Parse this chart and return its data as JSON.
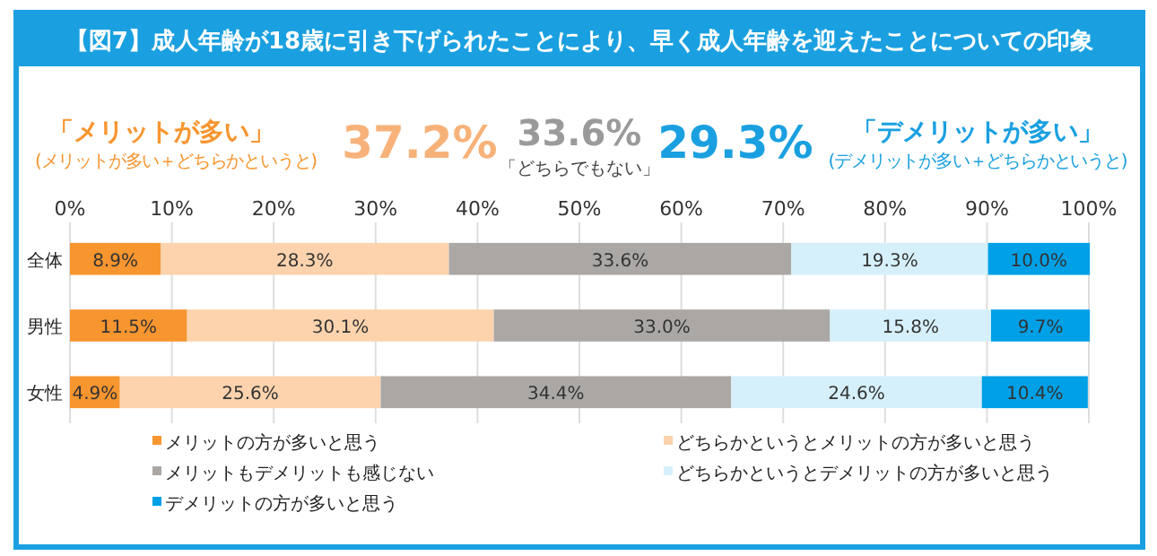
{
  "chart_data": {
    "type": "bar",
    "orientation": "horizontal",
    "stacked": true,
    "title": "【図7】成人年齢が18歳に引き下げられたことにより、早く成人年齢を迎えたことについての印象",
    "annotations": [
      "「メリットが多い」",
      "(メリットが多い＋どちらかというと)",
      "37.2%",
      "33.6%",
      "「どちらでもない」",
      "29.3%",
      "「デメリットが多い」",
      "(デメリットが多い＋どちらかというと)"
    ],
    "categories": [
      "全体",
      "男性",
      "女性"
    ],
    "series": [
      {
        "name": "メリットの方が多いと思う",
        "color": "#f7952f",
        "values": [
          8.9,
          11.5,
          4.9
        ],
        "value_labels": [
          "8.9%",
          "11.5%",
          "4.9%"
        ]
      },
      {
        "name": "どちらかというとメリットの方が多いと思う",
        "color": "#fcd3ad",
        "values": [
          28.3,
          30.1,
          25.6
        ],
        "value_labels": [
          "28.3%",
          "30.1%",
          "25.6%"
        ]
      },
      {
        "name": "メリットもデメリットも感じない",
        "color": "#aaa7a5",
        "values": [
          33.6,
          33.0,
          34.4
        ],
        "value_labels": [
          "33.6%",
          "33.0%",
          "34.4%"
        ]
      },
      {
        "name": "どちらかというとデメリットの方が多いと思う",
        "color": "#d6f0fb",
        "values": [
          19.3,
          15.8,
          24.6
        ],
        "value_labels": [
          "19.3%",
          "15.8%",
          "24.6%"
        ]
      },
      {
        "name": "デメリットの方が多いと思う",
        "color": "#00a0e6",
        "values": [
          10.0,
          9.7,
          10.4
        ],
        "value_labels": [
          "10.0%",
          "9.7%",
          "10.4%"
        ]
      }
    ],
    "xlim": [
      0,
      100
    ],
    "xticks": [
      {
        "value": 0,
        "label": "0%"
      },
      {
        "value": 10,
        "label": "10%"
      },
      {
        "value": 20,
        "label": "20%"
      },
      {
        "value": 30,
        "label": "30%"
      },
      {
        "value": 40,
        "label": "40%"
      },
      {
        "value": 50,
        "label": "50%"
      },
      {
        "value": 60,
        "label": "60%"
      },
      {
        "value": 70,
        "label": "70%"
      },
      {
        "value": 80,
        "label": "80%"
      },
      {
        "value": 90,
        "label": "90%"
      },
      {
        "value": 100,
        "label": "100%"
      }
    ],
    "grid": "x",
    "legend": "bottom"
  }
}
